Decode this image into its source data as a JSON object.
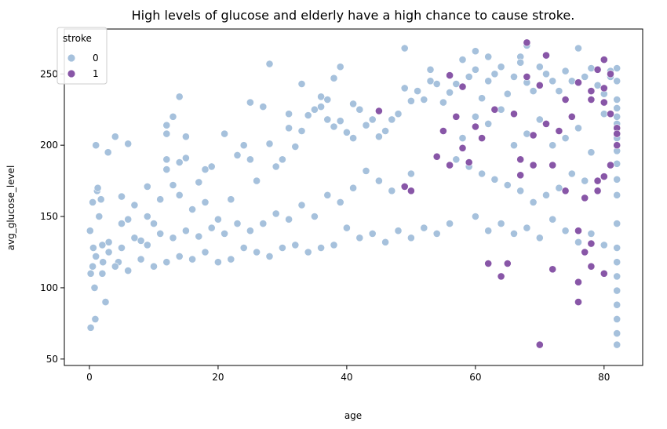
{
  "chart_data": {
    "type": "scatter",
    "title": "High levels of glucose and elderly have a high chance to cause stroke.",
    "xlabel": "age",
    "ylabel": "avg_glucose_level",
    "xlim": [
      -3.9,
      86.0
    ],
    "ylim": [
      45.5,
      281.5
    ],
    "xticks": [
      0,
      20,
      40,
      60,
      80
    ],
    "xtick_labels": [
      "0",
      "20",
      "40",
      "60",
      "80"
    ],
    "yticks": [
      50,
      100,
      150,
      200,
      250
    ],
    "ytick_labels": [
      "50",
      "100",
      "150",
      "200",
      "250"
    ],
    "grid": false,
    "legend": {
      "title": "stroke",
      "placement": "top-left",
      "entries": [
        {
          "label": "0",
          "color": "#a6c1dc"
        },
        {
          "label": "1",
          "color": "#8856a7"
        }
      ]
    },
    "series": [
      {
        "label": "0",
        "color": "#a6c1dc",
        "points": [
          [
            0.1,
            140
          ],
          [
            0.2,
            110
          ],
          [
            0.2,
            72
          ],
          [
            0.5,
            160
          ],
          [
            0.6,
            128
          ],
          [
            0.8,
            100
          ],
          [
            0.9,
            78
          ],
          [
            1.0,
            200
          ],
          [
            1.2,
            168
          ],
          [
            1.3,
            170
          ],
          [
            1.5,
            150
          ],
          [
            1.8,
            162
          ],
          [
            2.0,
            130
          ],
          [
            2.1,
            118
          ],
          [
            2.5,
            90
          ],
          [
            2.9,
            195
          ],
          [
            3.0,
            132
          ],
          [
            4.0,
            206
          ],
          [
            4.5,
            118
          ],
          [
            5.0,
            164
          ],
          [
            5.0,
            145
          ],
          [
            6.0,
            201
          ],
          [
            6.0,
            148
          ],
          [
            7.0,
            158
          ],
          [
            8.0,
            133
          ],
          [
            9.0,
            171
          ],
          [
            9.0,
            150
          ],
          [
            10.0,
            145
          ],
          [
            11.0,
            162
          ],
          [
            12.0,
            214
          ],
          [
            12.0,
            208
          ],
          [
            12.0,
            190
          ],
          [
            12.0,
            183
          ],
          [
            13.0,
            220
          ],
          [
            13.0,
            172
          ],
          [
            14.0,
            234
          ],
          [
            14.0,
            188
          ],
          [
            14.0,
            165
          ],
          [
            15.0,
            206
          ],
          [
            15.0,
            191
          ],
          [
            16.0,
            155
          ],
          [
            17.0,
            174
          ],
          [
            18.0,
            183
          ],
          [
            18.0,
            160
          ],
          [
            19.0,
            185
          ],
          [
            20.0,
            148
          ],
          [
            21.0,
            208
          ],
          [
            22.0,
            162
          ],
          [
            23.0,
            193
          ],
          [
            24.0,
            200
          ],
          [
            25.0,
            230
          ],
          [
            25.0,
            190
          ],
          [
            26.0,
            175
          ],
          [
            27.0,
            227
          ],
          [
            28.0,
            257
          ],
          [
            28.0,
            201
          ],
          [
            29.0,
            185
          ],
          [
            30.0,
            190
          ],
          [
            31.0,
            212
          ],
          [
            31.0,
            222
          ],
          [
            32.0,
            199
          ],
          [
            33.0,
            243
          ],
          [
            33.0,
            210
          ],
          [
            34.0,
            221
          ],
          [
            35.0,
            225
          ],
          [
            36.0,
            234
          ],
          [
            36.0,
            227
          ],
          [
            37.0,
            232
          ],
          [
            37.0,
            218
          ],
          [
            38.0,
            247
          ],
          [
            38.0,
            213
          ],
          [
            39.0,
            255
          ],
          [
            39.0,
            217
          ],
          [
            40.0,
            209
          ],
          [
            41.0,
            229
          ],
          [
            41.0,
            205
          ],
          [
            42.0,
            225
          ],
          [
            43.0,
            214
          ],
          [
            44.0,
            218
          ],
          [
            45.0,
            206
          ],
          [
            46.0,
            210
          ],
          [
            47.0,
            218
          ],
          [
            48.0,
            222
          ],
          [
            49.0,
            268
          ],
          [
            49.0,
            240
          ],
          [
            50.0,
            231
          ],
          [
            51.0,
            238
          ],
          [
            52.0,
            232
          ],
          [
            53.0,
            253
          ],
          [
            53.0,
            245
          ],
          [
            54.0,
            243
          ],
          [
            55.0,
            230
          ],
          [
            56.0,
            237
          ],
          [
            57.0,
            243
          ],
          [
            58.0,
            260
          ],
          [
            59.0,
            248
          ],
          [
            60.0,
            253
          ],
          [
            60.0,
            266
          ],
          [
            61.0,
            233
          ],
          [
            62.0,
            262
          ],
          [
            62.0,
            245
          ],
          [
            63.0,
            250
          ],
          [
            64.0,
            255
          ],
          [
            65.0,
            236
          ],
          [
            66.0,
            248
          ],
          [
            67.0,
            262
          ],
          [
            67.0,
            258
          ],
          [
            68.0,
            270
          ],
          [
            68.0,
            244
          ],
          [
            69.0,
            238
          ],
          [
            70.0,
            255
          ],
          [
            71.0,
            250
          ],
          [
            72.0,
            245
          ],
          [
            73.0,
            238
          ],
          [
            74.0,
            252
          ],
          [
            75.0,
            245
          ],
          [
            76.0,
            268
          ],
          [
            77.0,
            248
          ],
          [
            78.0,
            254
          ],
          [
            79.0,
            242
          ],
          [
            80.0,
            236
          ],
          [
            81.0,
            248
          ],
          [
            81.0,
            252
          ],
          [
            82.0,
            254
          ],
          [
            82.0,
            245
          ],
          [
            82.0,
            232
          ],
          [
            82.0,
            226
          ],
          [
            82.0,
            220
          ],
          [
            82.0,
            215
          ],
          [
            82.0,
            205
          ],
          [
            82.0,
            196
          ],
          [
            82.0,
            187
          ],
          [
            82.0,
            176
          ],
          [
            82.0,
            165
          ],
          [
            82.0,
            145
          ],
          [
            82.0,
            128
          ],
          [
            82.0,
            118
          ],
          [
            82.0,
            108
          ],
          [
            82.0,
            98
          ],
          [
            82.0,
            88
          ],
          [
            82.0,
            78
          ],
          [
            82.0,
            68
          ],
          [
            82.0,
            60
          ],
          [
            55.0,
            210
          ],
          [
            58.0,
            205
          ],
          [
            60.0,
            220
          ],
          [
            62.0,
            215
          ],
          [
            64.0,
            225
          ],
          [
            66.0,
            200
          ],
          [
            68.0,
            208
          ],
          [
            70.0,
            218
          ],
          [
            72.0,
            200
          ],
          [
            74.0,
            205
          ],
          [
            76.0,
            212
          ],
          [
            78.0,
            195
          ],
          [
            80.0,
            222
          ],
          [
            57.0,
            190
          ],
          [
            59.0,
            185
          ],
          [
            61.0,
            180
          ],
          [
            63.0,
            176
          ],
          [
            65.0,
            172
          ],
          [
            67.0,
            168
          ],
          [
            69.0,
            160
          ],
          [
            71.0,
            165
          ],
          [
            73.0,
            170
          ],
          [
            75.0,
            180
          ],
          [
            77.0,
            175
          ],
          [
            79.0,
            168
          ],
          [
            50.0,
            180
          ],
          [
            47.0,
            168
          ],
          [
            45.0,
            175
          ],
          [
            43.0,
            182
          ],
          [
            41.0,
            170
          ],
          [
            39.0,
            160
          ],
          [
            37.0,
            165
          ],
          [
            35.0,
            150
          ],
          [
            33.0,
            158
          ],
          [
            31.0,
            148
          ],
          [
            29.0,
            152
          ],
          [
            27.0,
            145
          ],
          [
            25.0,
            140
          ],
          [
            23.0,
            145
          ],
          [
            21.0,
            138
          ],
          [
            19.0,
            142
          ],
          [
            17.0,
            136
          ],
          [
            15.0,
            140
          ],
          [
            13.0,
            135
          ],
          [
            11.0,
            138
          ],
          [
            9.0,
            130
          ],
          [
            7.0,
            135
          ],
          [
            5.0,
            128
          ],
          [
            3.0,
            125
          ],
          [
            1.0,
            122
          ],
          [
            60.0,
            150
          ],
          [
            62.0,
            140
          ],
          [
            64.0,
            145
          ],
          [
            66.0,
            138
          ],
          [
            68.0,
            142
          ],
          [
            70.0,
            135
          ],
          [
            72.0,
            148
          ],
          [
            74.0,
            140
          ],
          [
            76.0,
            132
          ],
          [
            78.0,
            138
          ],
          [
            80.0,
            130
          ],
          [
            56.0,
            145
          ],
          [
            54.0,
            138
          ],
          [
            52.0,
            142
          ],
          [
            50.0,
            135
          ],
          [
            48.0,
            140
          ],
          [
            46.0,
            132
          ],
          [
            44.0,
            138
          ],
          [
            42.0,
            135
          ],
          [
            40.0,
            142
          ],
          [
            38.0,
            130
          ],
          [
            36.0,
            128
          ],
          [
            34.0,
            125
          ],
          [
            32.0,
            130
          ],
          [
            30.0,
            128
          ],
          [
            28.0,
            122
          ],
          [
            26.0,
            125
          ],
          [
            24.0,
            128
          ],
          [
            22.0,
            120
          ],
          [
            20.0,
            118
          ],
          [
            18.0,
            125
          ],
          [
            16.0,
            120
          ],
          [
            14.0,
            122
          ],
          [
            12.0,
            118
          ],
          [
            10.0,
            115
          ],
          [
            8.0,
            120
          ],
          [
            6.0,
            112
          ],
          [
            4.0,
            115
          ],
          [
            2.0,
            110
          ],
          [
            0.5,
            115
          ]
        ]
      },
      {
        "label": "1",
        "color": "#8856a7",
        "points": [
          [
            45.0,
            224
          ],
          [
            49.0,
            171
          ],
          [
            50.0,
            168
          ],
          [
            54.0,
            192
          ],
          [
            55.0,
            210
          ],
          [
            56.0,
            249
          ],
          [
            56.0,
            186
          ],
          [
            57.0,
            220
          ],
          [
            58.0,
            241
          ],
          [
            58.0,
            198
          ],
          [
            59.0,
            188
          ],
          [
            60.0,
            213
          ],
          [
            61.0,
            205
          ],
          [
            62.0,
            117
          ],
          [
            63.0,
            225
          ],
          [
            64.0,
            108
          ],
          [
            65.0,
            117
          ],
          [
            66.0,
            222
          ],
          [
            67.0,
            179
          ],
          [
            67.0,
            190
          ],
          [
            68.0,
            272
          ],
          [
            68.0,
            248
          ],
          [
            69.0,
            207
          ],
          [
            69.0,
            186
          ],
          [
            70.0,
            242
          ],
          [
            70.0,
            60
          ],
          [
            71.0,
            263
          ],
          [
            71.0,
            215
          ],
          [
            72.0,
            186
          ],
          [
            72.0,
            113
          ],
          [
            73.0,
            210
          ],
          [
            74.0,
            232
          ],
          [
            74.0,
            168
          ],
          [
            75.0,
            220
          ],
          [
            76.0,
            244
          ],
          [
            76.0,
            140
          ],
          [
            76.0,
            104
          ],
          [
            76.0,
            90
          ],
          [
            77.0,
            163
          ],
          [
            77.0,
            125
          ],
          [
            78.0,
            238
          ],
          [
            78.0,
            232
          ],
          [
            78.0,
            131
          ],
          [
            78.0,
            115
          ],
          [
            79.0,
            253
          ],
          [
            79.0,
            175
          ],
          [
            79.0,
            168
          ],
          [
            80.0,
            260
          ],
          [
            80.0,
            240
          ],
          [
            80.0,
            230
          ],
          [
            80.0,
            178
          ],
          [
            80.0,
            110
          ],
          [
            81.0,
            250
          ],
          [
            81.0,
            222
          ],
          [
            81.0,
            186
          ],
          [
            82.0,
            212
          ],
          [
            82.0,
            208
          ],
          [
            82.0,
            200
          ]
        ]
      }
    ]
  }
}
